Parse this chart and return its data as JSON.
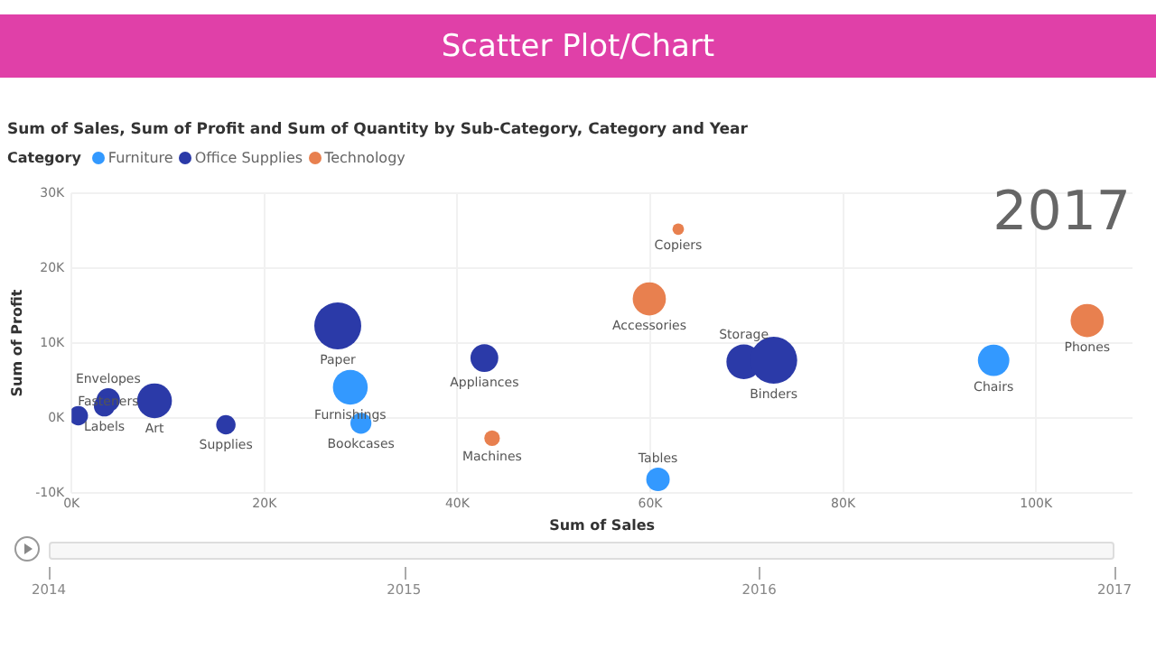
{
  "chart_data": {
    "type": "bubble",
    "title": "Scatter Plot/Chart",
    "subtitle": "Sum of Sales, Sum of Profit and Sum of Quantity by Sub-Category, Category and Year",
    "xlabel": "Sum of Sales",
    "ylabel": "Sum of Profit",
    "legend_title": "Category",
    "legend": "top left",
    "grid": true,
    "xlim": [
      0,
      110000
    ],
    "xticks": [
      {
        "value": 0,
        "label": "0K"
      },
      {
        "value": 20000,
        "label": "20K"
      },
      {
        "value": 40000,
        "label": "40K"
      },
      {
        "value": 60000,
        "label": "60K"
      },
      {
        "value": 80000,
        "label": "80K"
      },
      {
        "value": 100000,
        "label": "100K"
      }
    ],
    "ylim": [
      -10000,
      30000
    ],
    "yticks": [
      {
        "value": -10000,
        "label": "-10K"
      },
      {
        "value": 0,
        "label": "0K"
      },
      {
        "value": 10000,
        "label": "10K"
      },
      {
        "value": 20000,
        "label": "20K"
      },
      {
        "value": 30000,
        "label": "30K"
      }
    ],
    "series": [
      {
        "name": "Furniture",
        "color": "#3399ff",
        "x": [
          28900,
          30000,
          60800,
          95600
        ],
        "values": [
          4100,
          -700,
          -8200,
          7700
        ],
        "sizes": [
          0.55,
          0.2,
          0.25,
          0.45
        ]
      },
      {
        "name": "Office Supplies",
        "color": "#2b3aa8",
        "x": [
          700,
          3800,
          3400,
          8600,
          16000,
          27600,
          42800,
          69700,
          72800
        ],
        "values": [
          300,
          2400,
          1600,
          2300,
          -900,
          12300,
          8000,
          7500,
          7700
        ],
        "sizes": [
          0.17,
          0.25,
          0.2,
          0.55,
          0.17,
          1,
          0.35,
          0.55,
          1
        ]
      },
      {
        "name": "Technology",
        "color": "#e8804f",
        "x": [
          62900,
          59900,
          43600,
          105300
        ],
        "values": [
          25200,
          15900,
          -2700,
          13000
        ],
        "sizes": [
          0.06,
          0.5,
          0.11,
          0.5
        ]
      }
    ],
    "annotations": [
      "2017",
      "2014",
      "2015",
      "2016",
      "2017",
      {
        "text": "Bookcases",
        "x": 30000,
        "y": -700
      },
      {
        "text": "Furnishings",
        "x": 28900,
        "y": 4100
      },
      {
        "text": "Tables",
        "x": 60800,
        "y": -8200
      },
      {
        "text": "Chairs",
        "x": 95600,
        "y": 7700
      },
      {
        "text": "Labels",
        "x": 3400,
        "y": 1600
      },
      {
        "text": "Envelopes",
        "x": 3800,
        "y": 2400
      },
      {
        "text": "Fasteners",
        "x": 3800,
        "y": 2400
      },
      {
        "text": "Art",
        "x": 8600,
        "y": 2300
      },
      {
        "text": "Supplies",
        "x": 16000,
        "y": -900
      },
      {
        "text": "Paper",
        "x": 27600,
        "y": 12300
      },
      {
        "text": "Appliances",
        "x": 42800,
        "y": 8000
      },
      {
        "text": "Binders",
        "x": 72800,
        "y": 7700
      },
      {
        "text": "Storage",
        "x": 69700,
        "y": 7500
      },
      {
        "text": "Copiers",
        "x": 62900,
        "y": 25200
      },
      {
        "text": "Accessories",
        "x": 59900,
        "y": 15900
      },
      {
        "text": "Machines",
        "x": 43600,
        "y": -2700
      },
      {
        "text": "Phones",
        "x": 105300,
        "y": 13000
      }
    ]
  }
}
